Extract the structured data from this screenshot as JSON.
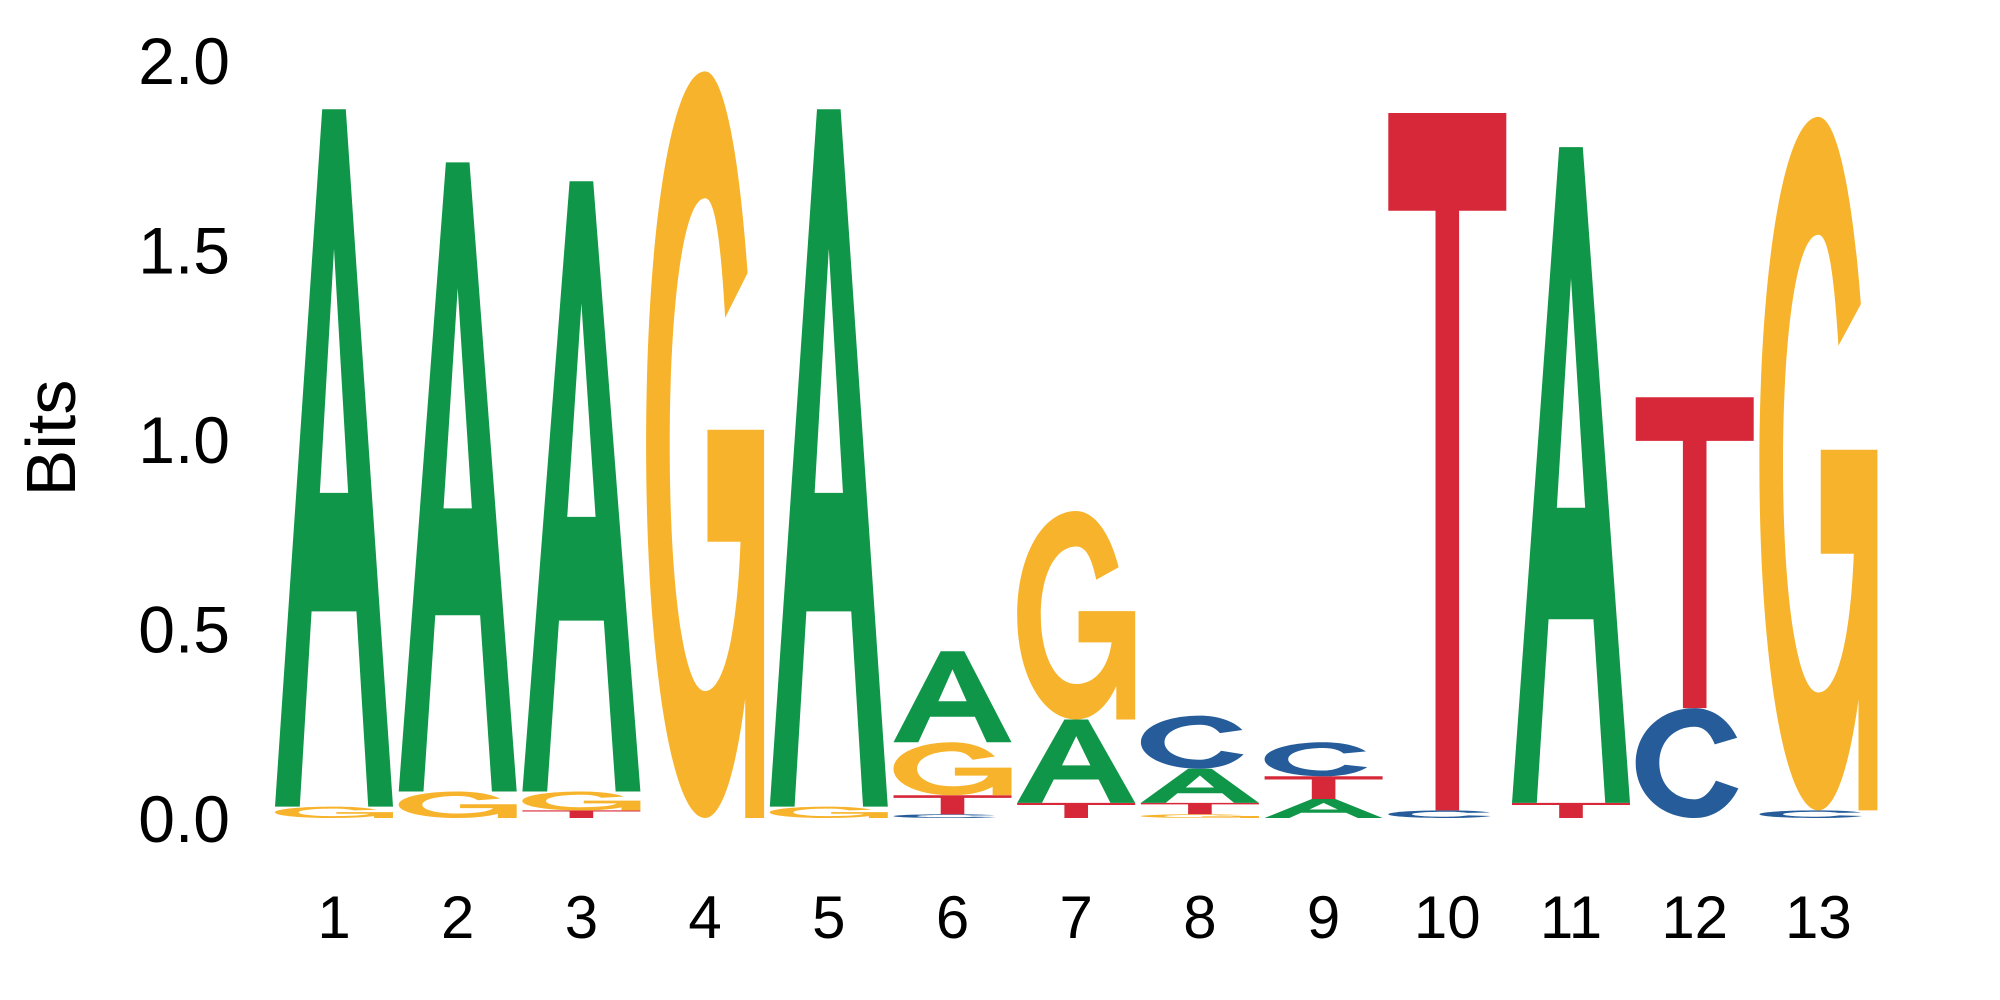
{
  "chart_data": {
    "type": "sequence-logo",
    "title": "",
    "xlabel": "",
    "ylabel": "Bits",
    "ylim": [
      0,
      2
    ],
    "yticks": [
      "0.0",
      "0.5",
      "1.0",
      "1.5",
      "2.0"
    ],
    "xticks": [
      "1",
      "2",
      "3",
      "4",
      "5",
      "6",
      "7",
      "8",
      "9",
      "10",
      "11",
      "12",
      "13"
    ],
    "colors": {
      "A": "#109648",
      "C": "#255C99",
      "G": "#F7B32B",
      "T": "#D62839"
    },
    "positions": [
      {
        "pos": "1",
        "letters": [
          {
            "base": "G",
            "bits": 0.03
          },
          {
            "base": "A",
            "bits": 1.84
          }
        ]
      },
      {
        "pos": "2",
        "letters": [
          {
            "base": "G",
            "bits": 0.07
          },
          {
            "base": "A",
            "bits": 1.66
          }
        ]
      },
      {
        "pos": "3",
        "letters": [
          {
            "base": "T",
            "bits": 0.02
          },
          {
            "base": "G",
            "bits": 0.05
          },
          {
            "base": "A",
            "bits": 1.61
          }
        ]
      },
      {
        "pos": "4",
        "letters": [
          {
            "base": "G",
            "bits": 1.97
          }
        ]
      },
      {
        "pos": "5",
        "letters": [
          {
            "base": "G",
            "bits": 0.03
          },
          {
            "base": "A",
            "bits": 1.84
          }
        ]
      },
      {
        "pos": "6",
        "letters": [
          {
            "base": "C",
            "bits": 0.01
          },
          {
            "base": "T",
            "bits": 0.05
          },
          {
            "base": "G",
            "bits": 0.14
          },
          {
            "base": "A",
            "bits": 0.24
          }
        ]
      },
      {
        "pos": "7",
        "letters": [
          {
            "base": "T",
            "bits": 0.04
          },
          {
            "base": "A",
            "bits": 0.22
          },
          {
            "base": "G",
            "bits": 0.55
          }
        ]
      },
      {
        "pos": "8",
        "letters": [
          {
            "base": "G",
            "bits": 0.01
          },
          {
            "base": "T",
            "bits": 0.03
          },
          {
            "base": "A",
            "bits": 0.09
          },
          {
            "base": "C",
            "bits": 0.14
          }
        ]
      },
      {
        "pos": "9",
        "letters": [
          {
            "base": "A",
            "bits": 0.05
          },
          {
            "base": "T",
            "bits": 0.06
          },
          {
            "base": "C",
            "bits": 0.09
          }
        ]
      },
      {
        "pos": "10",
        "letters": [
          {
            "base": "C",
            "bits": 0.02
          },
          {
            "base": "T",
            "bits": 1.84
          }
        ]
      },
      {
        "pos": "11",
        "letters": [
          {
            "base": "T",
            "bits": 0.04
          },
          {
            "base": "A",
            "bits": 1.73
          }
        ]
      },
      {
        "pos": "12",
        "letters": [
          {
            "base": "C",
            "bits": 0.29
          },
          {
            "base": "T",
            "bits": 0.82
          }
        ]
      },
      {
        "pos": "13",
        "letters": [
          {
            "base": "C",
            "bits": 0.02
          },
          {
            "base": "G",
            "bits": 1.83
          }
        ]
      }
    ]
  }
}
